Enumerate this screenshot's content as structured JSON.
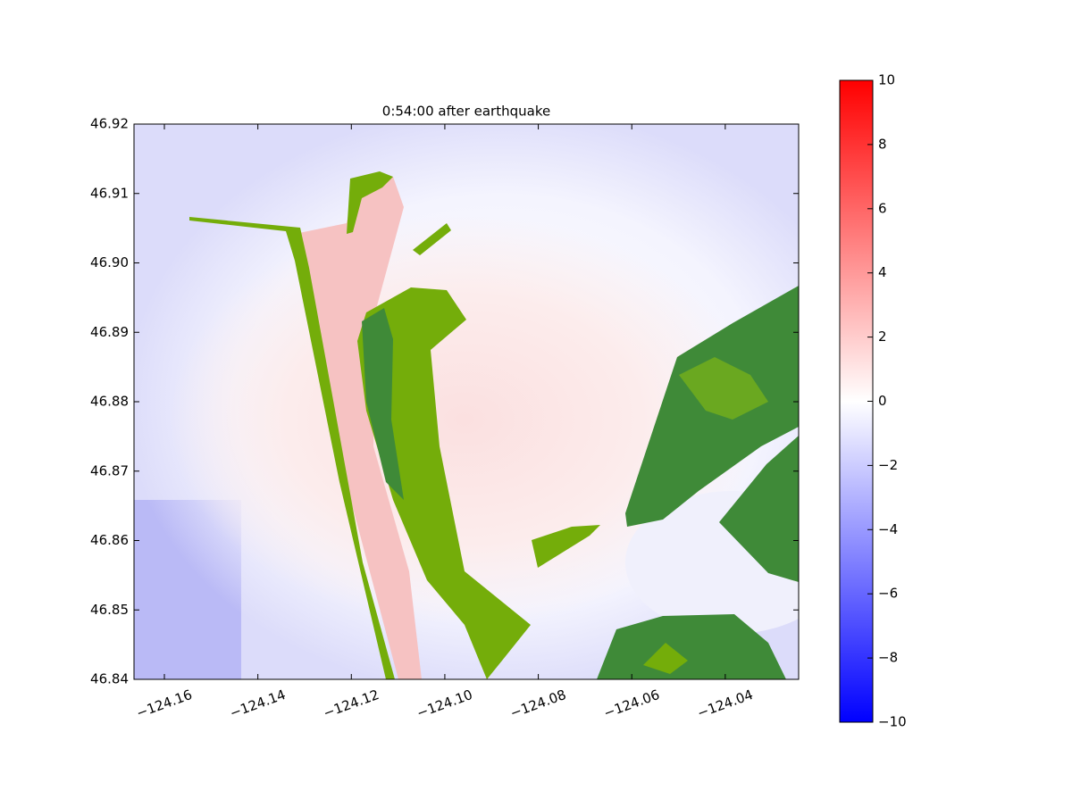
{
  "chart_data": {
    "type": "heatmap",
    "title": "0:54:00 after earthquake",
    "xlim": [
      -124.1665,
      -124.0243
    ],
    "ylim": [
      46.84,
      46.92
    ],
    "xticks": [
      {
        "value": -124.16,
        "label": "−124.16"
      },
      {
        "value": -124.14,
        "label": "−124.14"
      },
      {
        "value": -124.12,
        "label": "−124.12"
      },
      {
        "value": -124.1,
        "label": "−124.10"
      },
      {
        "value": -124.08,
        "label": "−124.08"
      },
      {
        "value": -124.06,
        "label": "−124.06"
      },
      {
        "value": -124.04,
        "label": "−124.04"
      }
    ],
    "yticks": [
      {
        "value": 46.84,
        "label": "46.84"
      },
      46.85,
      46.86,
      46.87,
      46.88,
      46.89,
      {
        "value": 46.9,
        "label": "46.90"
      },
      46.91,
      46.92
    ],
    "colorbar": {
      "lim": [
        -10,
        10
      ],
      "colors": [
        "#0000ff",
        "#ffffff",
        "#ff0000"
      ],
      "ticks": [
        {
          "value": -10,
          "label": "−10"
        },
        {
          "value": -8,
          "label": "−8"
        },
        {
          "value": -6,
          "label": "−6"
        },
        {
          "value": -4,
          "label": "−4"
        },
        {
          "value": -2,
          "label": "−2"
        },
        0,
        2,
        4,
        6,
        8,
        10
      ]
    }
  }
}
